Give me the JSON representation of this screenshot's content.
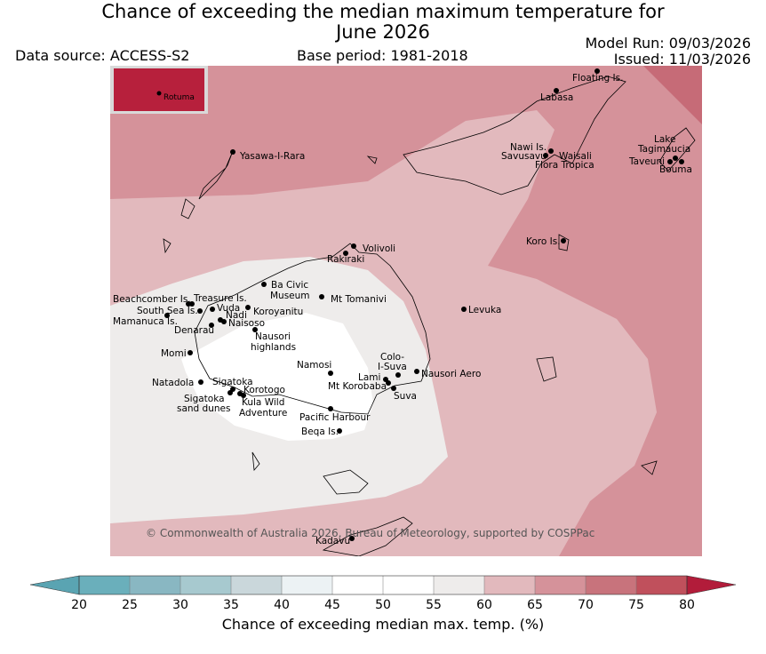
{
  "header": {
    "title_line1": "Chance of exceeding the median maximum temperature for",
    "title_line2": "June 2026",
    "data_source": "Data source: ACCESS-S2",
    "base_period": "Base period: 1981-2018",
    "model_run": "Model Run: 09/03/2026",
    "issued": "Issued: 11/03/2026"
  },
  "map": {
    "inset_label": "Rotuma",
    "copyright": "© Commonwealth of Australia 2026, Bureau of Meteorology, supported by COSPPac",
    "places": [
      "Floating Is.",
      "Labasa",
      "Yasawa-I-Rara",
      "Nawi Is.",
      "Savusavu",
      "Waisali",
      "Flora Tropica",
      "Lake",
      "Tagimaucia",
      "Taveuni",
      "Bouma",
      "Koro Is.",
      "Volivoli",
      "Rakiraki",
      "Ba Civic",
      "Museum",
      "Mt Tomanivi",
      "Beachcomber Is.",
      "Treasure Is.",
      "South Sea Is.",
      "Vuda",
      "Koroyanitu",
      "Nadi",
      "Mamanuca Is.",
      "Naisoso",
      "Denarau",
      "Nausori",
      "highlands",
      "Levuka",
      "Momi",
      "Colo-",
      "I-Suva",
      "Namosi",
      "Lami",
      "Nausori Aero",
      "Mt Korobaba",
      "Natadola",
      "Sigatoka",
      "Korotogo",
      "Suva",
      "Sigatoka",
      "sand dunes",
      "Kula Wild",
      "Adventure",
      "Pacific Harbour",
      "Beqa Is.",
      "Kadavu"
    ],
    "zone_colors": {
      "gt_75": "#c66b77",
      "65_70": "#d5929a",
      "60_65": "#e2b9bd",
      "55_60": "#eeeceb",
      "45_55": "#ffffff",
      "inset": "#b7203c"
    }
  },
  "colorbar": {
    "title": "Chance of exceeding median max. temp. (%)",
    "ticks": [
      "20",
      "25",
      "30",
      "35",
      "40",
      "45",
      "50",
      "55",
      "60",
      "65",
      "70",
      "75",
      "80"
    ],
    "colors": [
      "#6aafbb",
      "#89b7c2",
      "#a7c9cf",
      "#cad7db",
      "#ecf2f4",
      "#ffffff",
      "#ffffff",
      "#eeeceb",
      "#e2b9bd",
      "#d5929a",
      "#c8737c",
      "#c0505c"
    ],
    "under_color": "#5aa4b2",
    "over_color": "#b21c3a"
  }
}
